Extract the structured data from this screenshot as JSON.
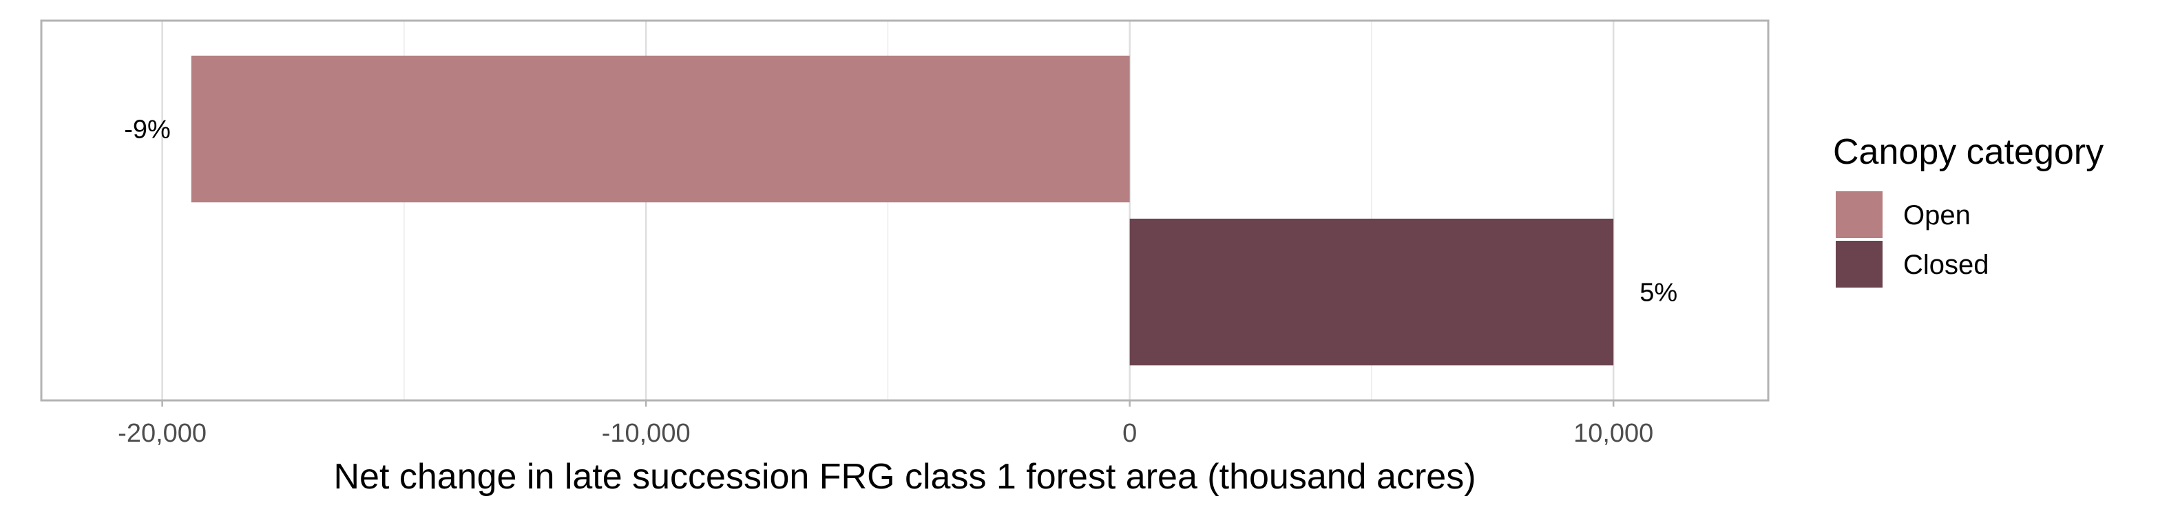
{
  "chart_data": {
    "type": "bar",
    "orientation": "horizontal",
    "xlabel": "Net change in late succession FRG class 1 forest area (thousand acres)",
    "ylabel": "",
    "xlim": [
      -22500,
      13200
    ],
    "xticks": [
      -20000,
      -10000,
      0,
      10000
    ],
    "xtick_labels": [
      "-20,000",
      "-10,000",
      "0",
      "10,000"
    ],
    "minor_gridlines": [
      -15000,
      -5000,
      5000
    ],
    "grid": true,
    "legend": {
      "title": "Canopy category",
      "placement": "right",
      "entries": [
        "Open",
        "Closed"
      ]
    },
    "series": [
      {
        "name": "Open",
        "value": -19400,
        "label": "-9%",
        "color": "#b67f82"
      },
      {
        "name": "Closed",
        "value": 10000,
        "label": "5%",
        "color": "#6a434e"
      }
    ]
  }
}
